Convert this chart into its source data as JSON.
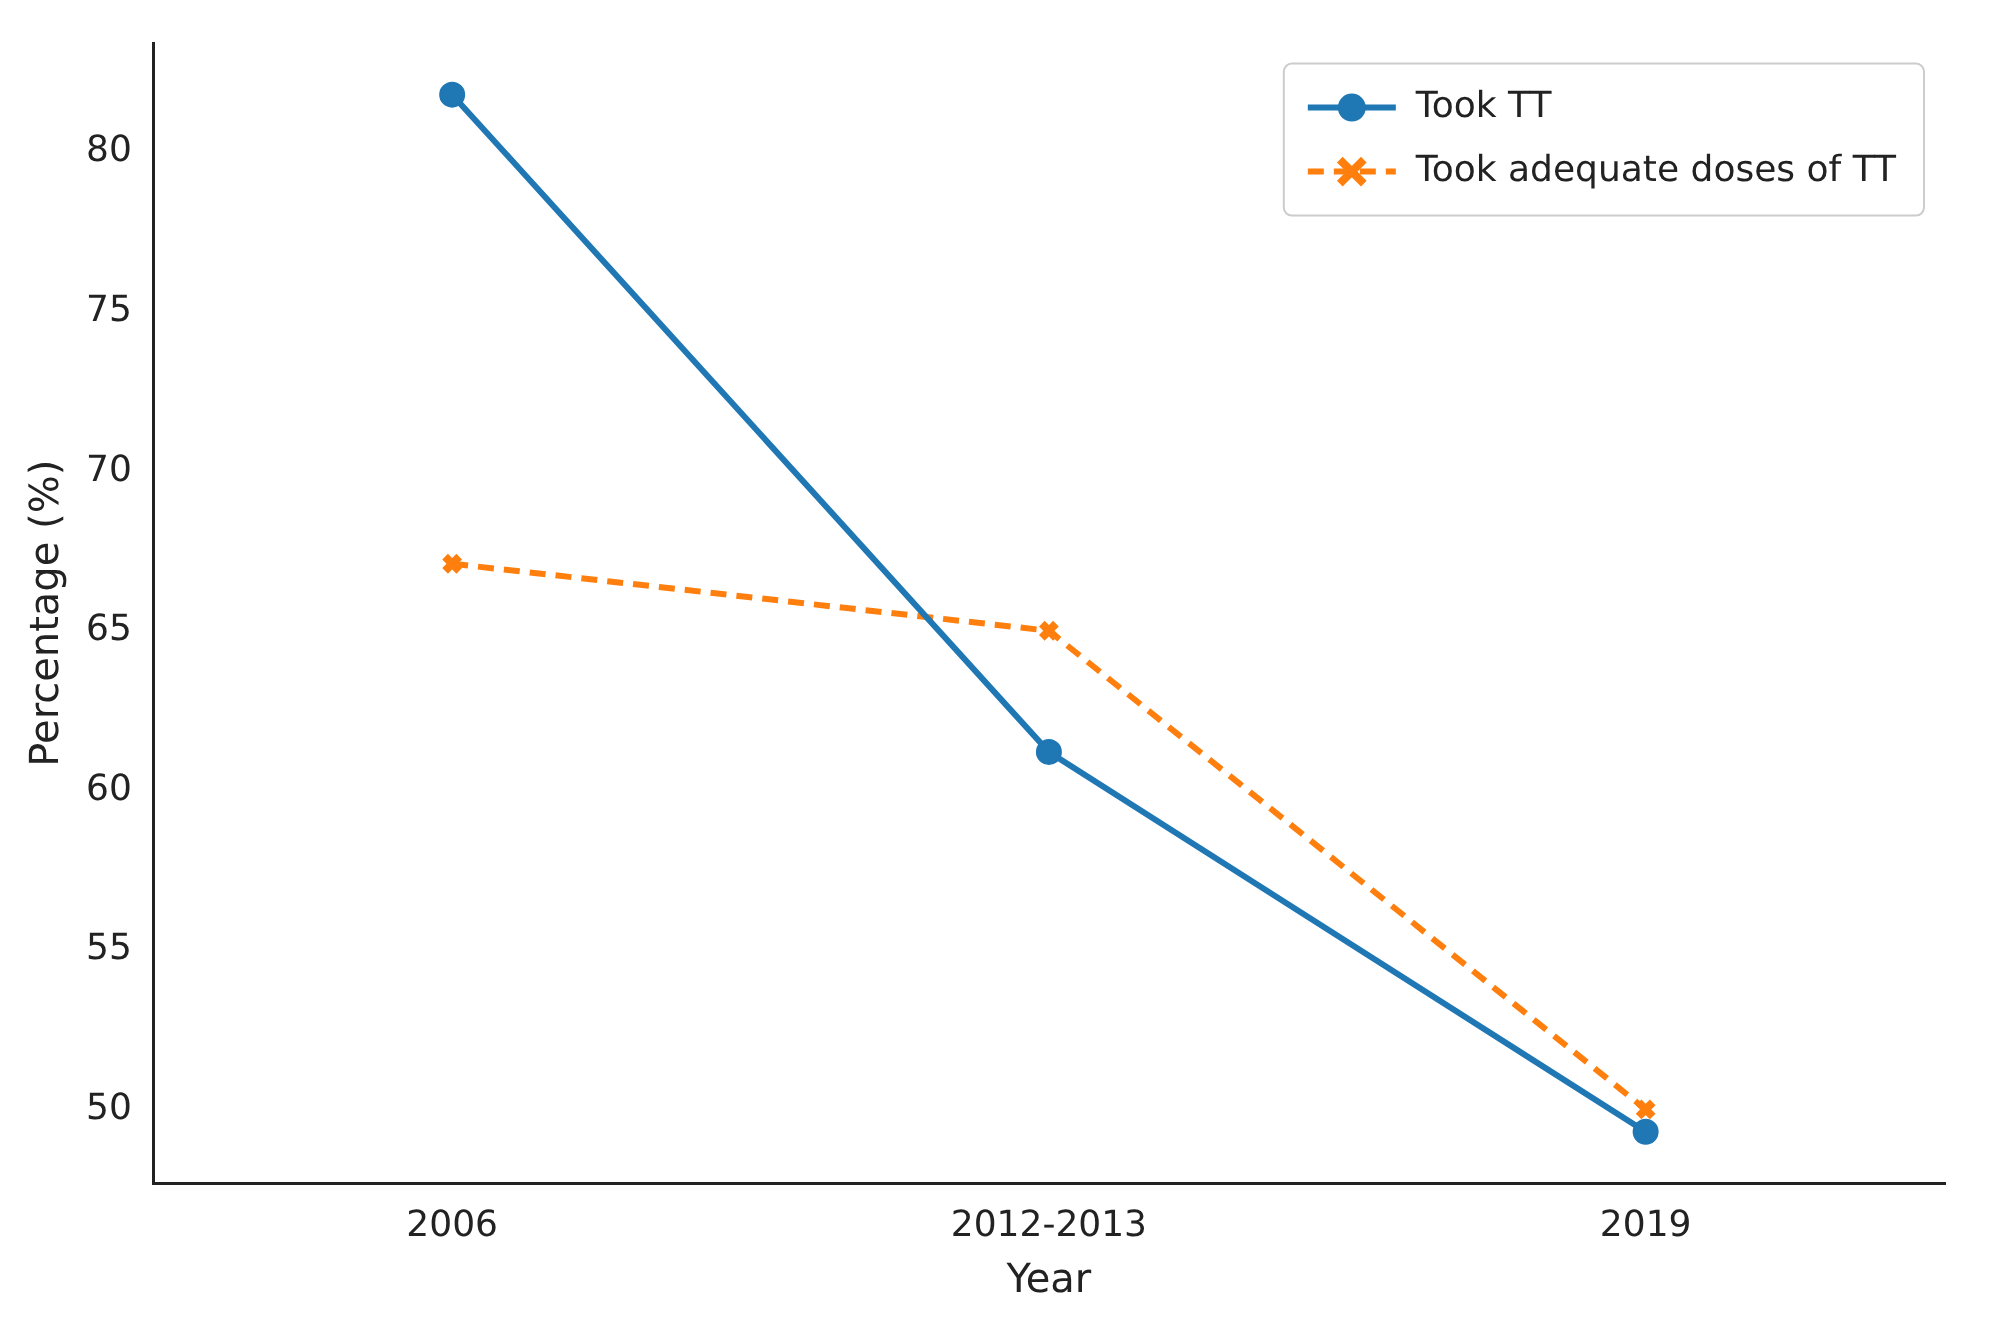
{
  "chart_data": {
    "type": "line",
    "xlabel": "Year",
    "ylabel": "Percentage (%)",
    "categories": [
      "2006",
      "2012-2013",
      "2019"
    ],
    "series": [
      {
        "name": "Took TT",
        "color": "#1f77b4",
        "values": [
          81.8,
          61.2,
          49.3
        ],
        "marker": "circle",
        "line_style": "solid"
      },
      {
        "name": "Took adequate doses of TT",
        "color": "#ff7f0e",
        "values": [
          67.1,
          65.0,
          50.0
        ],
        "marker": "cross",
        "line_style": "dashed"
      }
    ],
    "ylim": [
      47.7,
      83.4
    ],
    "yticks": [
      50,
      55,
      60,
      65,
      70,
      75,
      80
    ],
    "grid": false,
    "legend": "top right"
  }
}
